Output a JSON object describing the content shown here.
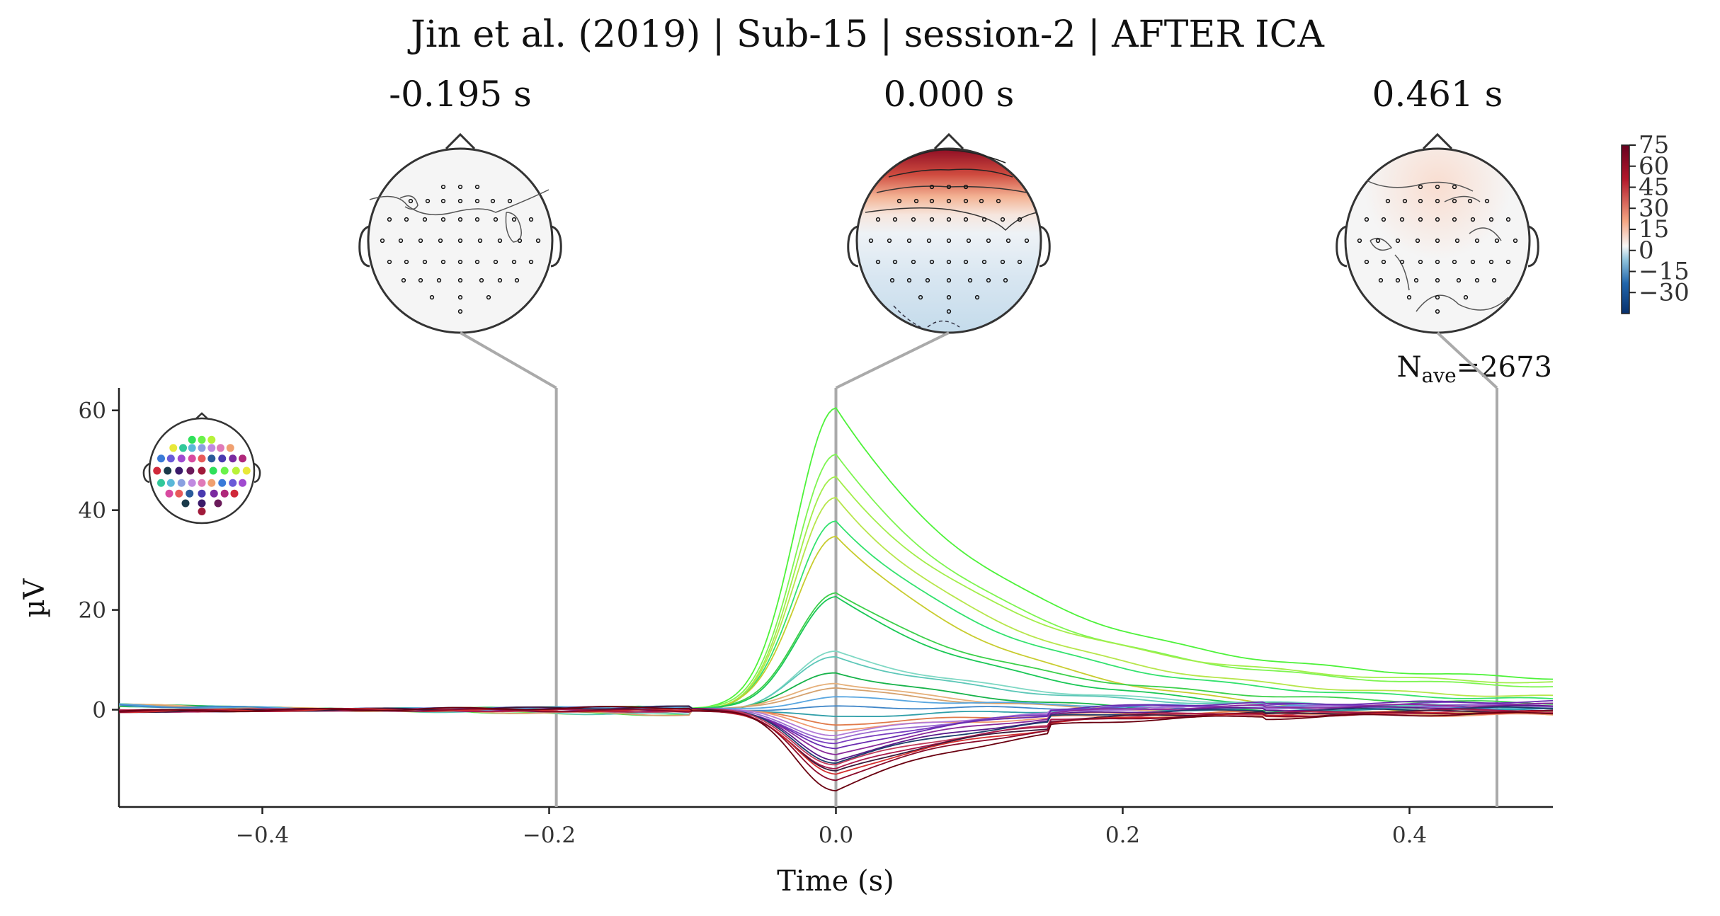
{
  "title": "Jin et al. (2019) | Sub-15 | session-2 | AFTER ICA",
  "nave_label": "N",
  "nave_sub": "ave",
  "nave_value": "=2673",
  "topomaps": [
    {
      "label": "-0.195 s",
      "time": -0.195
    },
    {
      "label": "0.000 s",
      "time": 0.0
    },
    {
      "label": "0.461 s",
      "time": 0.461
    }
  ],
  "colorbar": {
    "ticks": [
      "75",
      "60",
      "45",
      "30",
      "15",
      "0",
      "−15",
      "−30"
    ],
    "values": [
      75,
      60,
      45,
      30,
      15,
      0,
      -15,
      -30
    ],
    "range": [
      -45,
      75
    ],
    "colors": [
      "#08306b",
      "#2166ac",
      "#92c5de",
      "#f7f7f7",
      "#f4a582",
      "#b2182b",
      "#67001f"
    ]
  },
  "chart_data": {
    "type": "line",
    "title": "Jin et al. (2019) | Sub-15 | session-2 | AFTER ICA",
    "xlabel": "Time (s)",
    "ylabel": "µV",
    "xlim": [
      -0.5,
      0.5
    ],
    "ylim": [
      -19.5,
      64.5
    ],
    "xticks": [
      -0.4,
      -0.2,
      0.0,
      0.2,
      0.4
    ],
    "xtick_labels": [
      "−0.4",
      "−0.2",
      "0.0",
      "0.2",
      "0.4"
    ],
    "yticks": [
      0,
      20,
      40,
      60
    ],
    "ytick_labels": [
      "0",
      "20",
      "40",
      "60"
    ],
    "vlines": [
      -0.195,
      0.0,
      0.461
    ],
    "grid": false,
    "series": [
      {
        "color": "#4ef23a",
        "peak": 60.5,
        "final": 5.5
      },
      {
        "color": "#7df550",
        "peak": 51.0,
        "final": 4.0
      },
      {
        "color": "#a2ee4a",
        "peak": 46.5,
        "final": 4.8
      },
      {
        "color": "#b6e64a",
        "peak": 42.5,
        "final": 2.0
      },
      {
        "color": "#33e26e",
        "peak": 38.0,
        "final": 1.5
      },
      {
        "color": "#c8cc2e",
        "peak": 35.0,
        "final": -1.5
      },
      {
        "color": "#3cd04a",
        "peak": 23.5,
        "final": 1.0
      },
      {
        "color": "#1ac856",
        "peak": 22.5,
        "final": -0.5
      },
      {
        "color": "#7fd8c4",
        "peak": 11.5,
        "final": 0.5
      },
      {
        "color": "#5cc7b8",
        "peak": 10.5,
        "final": 0.2
      },
      {
        "color": "#17b34a",
        "peak": 7.5,
        "final": -1.0
      },
      {
        "color": "#e6b07a",
        "peak": 5.5,
        "final": -1.0
      },
      {
        "color": "#d5a16d",
        "peak": 4.5,
        "final": -0.8
      },
      {
        "color": "#58a6e0",
        "peak": 2.5,
        "final": 0.5
      },
      {
        "color": "#3f86c8",
        "peak": 0.5,
        "final": 0.3
      },
      {
        "color": "#2f9ea8",
        "peak": -1.5,
        "final": 0.2
      },
      {
        "color": "#e07a4a",
        "peak": -3.0,
        "final": -0.5
      },
      {
        "color": "#f09a70",
        "peak": -4.0,
        "final": -1.0
      },
      {
        "color": "#b27ad8",
        "peak": -5.0,
        "final": 0.8
      },
      {
        "color": "#9a6ad0",
        "peak": -6.0,
        "final": 1.0
      },
      {
        "color": "#7a3fc0",
        "peak": -7.0,
        "final": 1.5
      },
      {
        "color": "#6a2bb0",
        "peak": -8.0,
        "final": 1.8
      },
      {
        "color": "#8a2a9a",
        "peak": -9.0,
        "final": 1.2
      },
      {
        "color": "#5a1a8a",
        "peak": -10.0,
        "final": 0.8
      },
      {
        "color": "#1d3d6a",
        "peak": -10.5,
        "final": 0.5
      },
      {
        "color": "#c03a5a",
        "peak": -11.0,
        "final": -0.2
      },
      {
        "color": "#a8184a",
        "peak": -12.0,
        "final": 0.2
      },
      {
        "color": "#3a1a3a",
        "peak": -12.5,
        "final": 0.0
      },
      {
        "color": "#d22e2e",
        "peak": -13.0,
        "final": -0.3
      },
      {
        "color": "#8a0a2a",
        "peak": -14.0,
        "final": -0.2
      },
      {
        "color": "#6a0010",
        "peak": -16.0,
        "final": -0.5
      }
    ]
  }
}
